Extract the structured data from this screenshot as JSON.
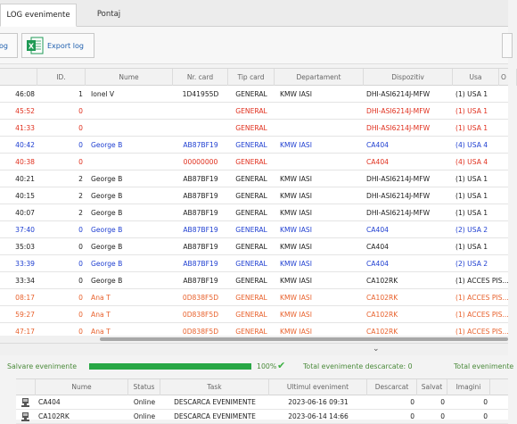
{
  "tabs": [
    {
      "label": "LOG evenimente",
      "active": true
    },
    {
      "label": "Pontaj",
      "active": false
    }
  ],
  "toolbar": {
    "left_label": "og",
    "export_label": "Export log"
  },
  "log_table": {
    "columns": [
      "",
      "ID.",
      "Nume",
      "Nr. card",
      "Tip card",
      "Departament",
      "Dispozitiv",
      "Usa",
      "O"
    ],
    "rows": [
      {
        "time": "46:08",
        "id": "1",
        "nume": "Ionel V",
        "card": "1D41955D",
        "tip": "GENERAL",
        "dept": "KMW IASI",
        "disp": "DHI-ASI6214J-MFW",
        "usa": "(1) USA 1",
        "color": "normal"
      },
      {
        "time": "45:52",
        "id": "0",
        "nume": "",
        "card": "",
        "tip": "GENERAL",
        "dept": "",
        "disp": "DHI-ASI6214J-MFW",
        "usa": "(1) USA 1",
        "color": "red"
      },
      {
        "time": "41:33",
        "id": "0",
        "nume": "",
        "card": "",
        "tip": "GENERAL",
        "dept": "",
        "disp": "DHI-ASI6214J-MFW",
        "usa": "(1) USA 1",
        "color": "red"
      },
      {
        "time": "40:42",
        "id": "0",
        "nume": "George B",
        "card": "AB87BF19",
        "tip": "GENERAL",
        "dept": "KMW IASI",
        "disp": "CA404",
        "usa": "(4) USA 4",
        "color": "blue"
      },
      {
        "time": "40:38",
        "id": "0",
        "nume": "",
        "card": "00000000",
        "tip": "GENERAL",
        "dept": "",
        "disp": "CA404",
        "usa": "(4) USA 4",
        "color": "red"
      },
      {
        "time": "40:21",
        "id": "2",
        "nume": "George B",
        "card": "AB87BF19",
        "tip": "GENERAL",
        "dept": "KMW IASI",
        "disp": "DHI-ASI6214J-MFW",
        "usa": "(1) USA 1",
        "color": "normal"
      },
      {
        "time": "40:15",
        "id": "2",
        "nume": "George B",
        "card": "AB87BF19",
        "tip": "GENERAL",
        "dept": "KMW IASI",
        "disp": "DHI-ASI6214J-MFW",
        "usa": "(1) USA 1",
        "color": "normal"
      },
      {
        "time": "40:07",
        "id": "2",
        "nume": "George B",
        "card": "AB87BF19",
        "tip": "GENERAL",
        "dept": "KMW IASI",
        "disp": "DHI-ASI6214J-MFW",
        "usa": "(1) USA 1",
        "color": "normal"
      },
      {
        "time": "37:40",
        "id": "0",
        "nume": "George B",
        "card": "AB87BF19",
        "tip": "GENERAL",
        "dept": "KMW IASI",
        "disp": "CA404",
        "usa": "(2) USA 2",
        "color": "blue"
      },
      {
        "time": "35:03",
        "id": "0",
        "nume": "George B",
        "card": "AB87BF19",
        "tip": "GENERAL",
        "dept": "KMW IASI",
        "disp": "CA404",
        "usa": "(1) USA 1",
        "color": "normal"
      },
      {
        "time": "33:39",
        "id": "0",
        "nume": "George B",
        "card": "AB87BF19",
        "tip": "GENERAL",
        "dept": "KMW IASI",
        "disp": "CA404",
        "usa": "(2) USA 2",
        "color": "blue"
      },
      {
        "time": "33:34",
        "id": "0",
        "nume": "George B",
        "card": "AB87BF19",
        "tip": "GENERAL",
        "dept": "KMW IASI",
        "disp": "CA102RK",
        "usa": "(1) ACCES PIS...",
        "color": "normal"
      },
      {
        "time": "08:17",
        "id": "0",
        "nume": "Ana T",
        "card": "0D838F5D",
        "tip": "GENERAL",
        "dept": "KMW IASI",
        "disp": "CA102RK",
        "usa": "(1) ACCES PIS...",
        "color": "orange"
      },
      {
        "time": "59:27",
        "id": "0",
        "nume": "Ana T",
        "card": "0D838F5D",
        "tip": "GENERAL",
        "dept": "KMW IASI",
        "disp": "CA102RK",
        "usa": "(1) ACCES PIS...",
        "color": "orange"
      },
      {
        "time": "47:17",
        "id": "0",
        "nume": "Ana T",
        "card": "0D838F5D",
        "tip": "GENERAL",
        "dept": "KMW IASI",
        "disp": "CA102RK",
        "usa": "(1) ACCES PIS...",
        "color": "orange"
      }
    ]
  },
  "status": {
    "save_label": "Salvare evenimente",
    "progress_percent": 100,
    "progress_text": "100%",
    "downloaded_label": "Total evenimente descarcate: 0",
    "total_label": "Total evenimente"
  },
  "devices": {
    "columns": [
      "",
      "Nume",
      "Status",
      "Task",
      "Ultimul eveniment",
      "Descarcat",
      "Salvat",
      "Imagini"
    ],
    "rows": [
      {
        "nume": "CA404",
        "status": "Online",
        "task": "DESCARCA EVENIMENTE",
        "last": "2023-06-16 09:31",
        "desc": "0",
        "salvat": "0",
        "imagini": "0"
      },
      {
        "nume": "CA102RK",
        "status": "Online",
        "task": "DESCARCA EVENIMENTE",
        "last": "2023-06-14 14:66",
        "desc": "0",
        "salvat": "0",
        "imagini": "0"
      }
    ]
  },
  "colors": {
    "normal": "#222222",
    "red": "#e0301e",
    "blue": "#1f3fd1",
    "orange": "#e8612c",
    "progress": "#28a745",
    "status_text": "#4a8a3a"
  },
  "icons": {
    "export": "excel-icon",
    "success": "check-icon",
    "expand": "chevron-down-icon",
    "device": "device-icon"
  }
}
